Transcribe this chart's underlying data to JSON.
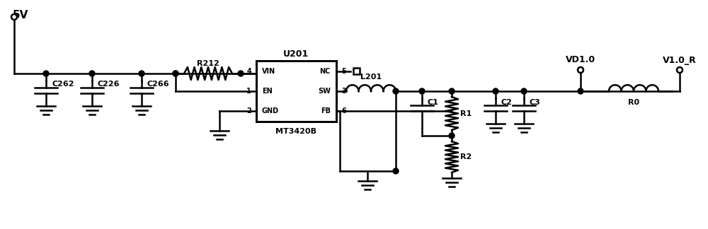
{
  "bg": "#ffffff",
  "lc": "#000000",
  "lw": 1.8,
  "figsize": [
    10.0,
    3.24
  ],
  "dpi": 100,
  "xlim": [
    0,
    1000
  ],
  "ylim": [
    0,
    324
  ]
}
